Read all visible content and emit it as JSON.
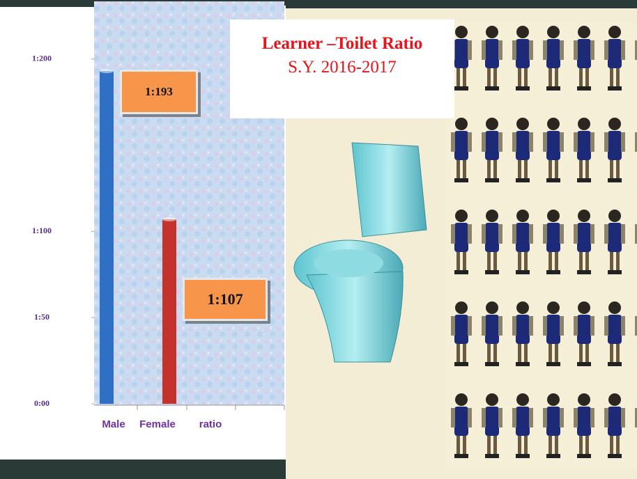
{
  "chart_data": {
    "type": "bar",
    "title": "Learner –Toilet Ratio",
    "subtitle": "S.Y. 2016-2017",
    "categories": [
      "Male",
      "Female",
      "ratio"
    ],
    "values": [
      193,
      107,
      null
    ],
    "value_labels": [
      "1:193",
      "1:107",
      null
    ],
    "colors": [
      "#2f6fc6",
      "#c4322c",
      null
    ],
    "ylim": [
      0,
      210
    ],
    "yticks": [
      {
        "value": 0,
        "label": "0:00"
      },
      {
        "value": 50,
        "label": "1:50"
      },
      {
        "value": 100,
        "label": "1:100"
      },
      {
        "value": 200,
        "label": "1:200"
      }
    ]
  }
}
